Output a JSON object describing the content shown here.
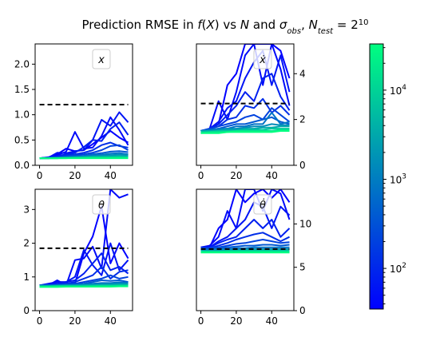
{
  "figure": {
    "title_parts": [
      {
        "t": "Prediction RMSE in ",
        "i": false
      },
      {
        "t": "f",
        "i": true
      },
      {
        "t": "(",
        "i": false
      },
      {
        "t": "X",
        "i": true
      },
      {
        "t": ") vs ",
        "i": false
      },
      {
        "t": "N",
        "i": true
      },
      {
        "t": " and ",
        "i": false
      },
      {
        "t": "σ",
        "i": true
      },
      {
        "t": "obs",
        "i": true,
        "sub": true
      },
      {
        "t": ", ",
        "i": false
      },
      {
        "t": "N",
        "i": true
      },
      {
        "t": "test",
        "i": true,
        "sub": true
      },
      {
        "t": " = 2",
        "i": false
      },
      {
        "t": "10",
        "i": false,
        "sup": true
      }
    ]
  },
  "colorbar": {
    "scale": "log",
    "range": [
      35,
      33000
    ],
    "ticks": [
      {
        "v": 100,
        "base": "10",
        "exp": "2"
      },
      {
        "v": 1000,
        "base": "10",
        "exp": "3"
      },
      {
        "v": 10000,
        "base": "10",
        "exp": "4"
      }
    ],
    "colormap": [
      "#0000ff",
      "#00ff80"
    ]
  },
  "colors": {
    "baseline": "#000000"
  },
  "chart_data": [
    {
      "type": "line",
      "panel": "top-left",
      "label": "x",
      "label_italic": true,
      "xlim": [
        -2.5,
        52.5
      ],
      "ylim": [
        0,
        2.4
      ],
      "xticks": [
        0,
        20,
        40
      ],
      "yticks": [
        0.0,
        0.5,
        1.0,
        1.5,
        2.0
      ],
      "ytick_labels": [
        "0.0",
        "0.5",
        "1.0",
        "1.5",
        "2.0"
      ],
      "yaxis_side": "left",
      "baseline": {
        "y": 1.2,
        "x": [
          0,
          50
        ]
      },
      "x": [
        0,
        5,
        10,
        15,
        20,
        25,
        30,
        35,
        40,
        45,
        50
      ],
      "series": [
        {
          "t": 0.0,
          "values": [
            0.14,
            0.16,
            0.22,
            0.33,
            0.28,
            0.3,
            0.42,
            0.55,
            0.68,
            0.55,
            0.45
          ]
        },
        {
          "t": 0.04,
          "values": [
            0.14,
            0.15,
            0.2,
            0.27,
            0.66,
            0.33,
            0.35,
            0.58,
            0.95,
            0.7,
            0.4
          ]
        },
        {
          "t": 0.08,
          "values": [
            0.14,
            0.15,
            0.25,
            0.24,
            0.28,
            0.3,
            0.5,
            0.9,
            0.78,
            1.05,
            0.85
          ]
        },
        {
          "t": 0.12,
          "values": [
            0.14,
            0.15,
            0.18,
            0.22,
            0.25,
            0.36,
            0.5,
            0.48,
            0.72,
            0.85,
            0.6
          ]
        },
        {
          "t": 0.18,
          "values": [
            0.14,
            0.15,
            0.17,
            0.2,
            0.22,
            0.25,
            0.3,
            0.4,
            0.45,
            0.38,
            0.35
          ]
        },
        {
          "t": 0.26,
          "values": [
            0.14,
            0.15,
            0.16,
            0.18,
            0.2,
            0.22,
            0.25,
            0.3,
            0.38,
            0.4,
            0.3
          ]
        },
        {
          "t": 0.35,
          "values": [
            0.14,
            0.14,
            0.15,
            0.17,
            0.18,
            0.19,
            0.22,
            0.24,
            0.27,
            0.28,
            0.26
          ]
        },
        {
          "t": 0.45,
          "values": [
            0.14,
            0.14,
            0.15,
            0.16,
            0.17,
            0.18,
            0.2,
            0.21,
            0.23,
            0.24,
            0.22
          ]
        },
        {
          "t": 0.55,
          "values": [
            0.14,
            0.14,
            0.15,
            0.15,
            0.16,
            0.17,
            0.18,
            0.19,
            0.2,
            0.21,
            0.2
          ]
        },
        {
          "t": 0.66,
          "values": [
            0.14,
            0.14,
            0.14,
            0.15,
            0.15,
            0.16,
            0.17,
            0.17,
            0.18,
            0.18,
            0.18
          ]
        },
        {
          "t": 0.78,
          "values": [
            0.14,
            0.14,
            0.14,
            0.15,
            0.15,
            0.15,
            0.16,
            0.16,
            0.16,
            0.17,
            0.16
          ]
        },
        {
          "t": 0.9,
          "values": [
            0.14,
            0.14,
            0.14,
            0.14,
            0.15,
            0.15,
            0.15,
            0.15,
            0.15,
            0.15,
            0.15
          ]
        },
        {
          "t": 1.0,
          "values": [
            0.14,
            0.14,
            0.14,
            0.14,
            0.14,
            0.14,
            0.14,
            0.14,
            0.14,
            0.14,
            0.14
          ]
        }
      ]
    },
    {
      "type": "line",
      "panel": "top-right",
      "label": "ẋ",
      "label_italic": true,
      "xlim": [
        -2.5,
        52.5
      ],
      "ylim": [
        0,
        5.3
      ],
      "xticks": [
        0,
        20,
        40
      ],
      "yticks": [
        0,
        2,
        4
      ],
      "ytick_labels": [
        "0",
        "2",
        "4"
      ],
      "yaxis_side": "right",
      "baseline": {
        "y": 2.7,
        "x": [
          0,
          50
        ]
      },
      "x": [
        0,
        5,
        10,
        15,
        20,
        25,
        30,
        35,
        40,
        45,
        50
      ],
      "series": [
        {
          "t": 0.0,
          "values": [
            1.5,
            1.6,
            1.8,
            3.5,
            4.0,
            5.3,
            5.3,
            5.3,
            5.3,
            5.0,
            3.8
          ]
        },
        {
          "t": 0.04,
          "values": [
            1.5,
            1.6,
            2.8,
            2.0,
            3.2,
            4.8,
            5.3,
            3.5,
            5.3,
            4.2,
            2.6
          ]
        },
        {
          "t": 0.08,
          "values": [
            1.5,
            1.6,
            1.9,
            2.5,
            2.8,
            3.8,
            4.5,
            5.0,
            3.5,
            4.8,
            3.2
          ]
        },
        {
          "t": 0.12,
          "values": [
            1.5,
            1.6,
            1.8,
            2.2,
            2.6,
            3.2,
            2.8,
            3.8,
            4.0,
            3.0,
            2.4
          ]
        },
        {
          "t": 0.18,
          "values": [
            1.5,
            1.6,
            1.7,
            2.0,
            2.1,
            2.6,
            2.5,
            2.9,
            2.3,
            2.6,
            2.2
          ]
        },
        {
          "t": 0.26,
          "values": [
            1.5,
            1.6,
            1.7,
            1.8,
            1.9,
            2.1,
            2.2,
            2.0,
            2.5,
            2.2,
            1.9
          ]
        },
        {
          "t": 0.35,
          "values": [
            1.5,
            1.55,
            1.6,
            1.7,
            1.8,
            1.8,
            1.9,
            2.0,
            2.1,
            1.9,
            1.8
          ]
        },
        {
          "t": 0.45,
          "values": [
            1.5,
            1.55,
            1.6,
            1.6,
            1.7,
            1.7,
            1.8,
            1.8,
            2.3,
            1.8,
            1.9
          ]
        },
        {
          "t": 0.55,
          "values": [
            1.5,
            1.5,
            1.55,
            1.6,
            1.6,
            1.65,
            1.7,
            1.7,
            1.8,
            1.75,
            1.75
          ]
        },
        {
          "t": 0.66,
          "values": [
            1.5,
            1.5,
            1.5,
            1.55,
            1.55,
            1.6,
            1.6,
            1.65,
            1.65,
            1.7,
            1.7
          ]
        },
        {
          "t": 0.78,
          "values": [
            1.45,
            1.45,
            1.5,
            1.5,
            1.5,
            1.55,
            1.55,
            1.55,
            1.6,
            1.6,
            1.6
          ]
        },
        {
          "t": 0.9,
          "values": [
            1.4,
            1.45,
            1.45,
            1.45,
            1.5,
            1.5,
            1.5,
            1.5,
            1.5,
            1.55,
            1.55
          ]
        },
        {
          "t": 1.0,
          "values": [
            1.4,
            1.4,
            1.4,
            1.45,
            1.45,
            1.45,
            1.45,
            1.45,
            1.45,
            1.5,
            1.5
          ]
        }
      ]
    },
    {
      "type": "line",
      "panel": "bottom-left",
      "label": "θ",
      "label_italic": true,
      "xlim": [
        -2.5,
        52.5
      ],
      "ylim": [
        0,
        3.6
      ],
      "xticks": [
        0,
        20,
        40
      ],
      "yticks": [
        0,
        1,
        2,
        3
      ],
      "ytick_labels": [
        "0",
        "1",
        "2",
        "3"
      ],
      "yaxis_side": "left",
      "baseline": {
        "y": 1.85,
        "x": [
          0,
          50
        ]
      },
      "x": [
        0,
        5,
        10,
        15,
        20,
        25,
        30,
        35,
        40,
        45,
        50
      ],
      "series": [
        {
          "t": 0.0,
          "values": [
            0.75,
            0.75,
            0.85,
            0.8,
            0.8,
            1.7,
            2.2,
            3.1,
            1.4,
            2.0,
            1.55
          ]
        },
        {
          "t": 0.04,
          "values": [
            0.75,
            0.75,
            0.9,
            0.75,
            1.5,
            1.55,
            1.9,
            1.25,
            3.6,
            3.35,
            3.45
          ]
        },
        {
          "t": 0.08,
          "values": [
            0.75,
            0.8,
            0.85,
            0.85,
            1.0,
            1.8,
            1.35,
            1.05,
            2.0,
            1.2,
            1.5
          ]
        },
        {
          "t": 0.12,
          "values": [
            0.75,
            0.75,
            0.8,
            0.85,
            0.9,
            1.1,
            1.4,
            1.7,
            1.2,
            1.3,
            1.1
          ]
        },
        {
          "t": 0.18,
          "values": [
            0.75,
            0.75,
            0.78,
            0.8,
            0.85,
            0.95,
            1.05,
            1.3,
            0.95,
            1.15,
            1.2
          ]
        },
        {
          "t": 0.26,
          "values": [
            0.75,
            0.75,
            0.76,
            0.78,
            0.8,
            0.85,
            0.9,
            0.95,
            1.05,
            0.95,
            1.0
          ]
        },
        {
          "t": 0.35,
          "values": [
            0.75,
            0.75,
            0.75,
            0.77,
            0.78,
            0.8,
            0.85,
            0.9,
            0.88,
            0.9,
            0.85
          ]
        },
        {
          "t": 0.45,
          "values": [
            0.74,
            0.74,
            0.75,
            0.75,
            0.76,
            0.78,
            0.8,
            0.82,
            0.82,
            0.84,
            0.82
          ]
        },
        {
          "t": 0.55,
          "values": [
            0.74,
            0.74,
            0.74,
            0.75,
            0.75,
            0.76,
            0.77,
            0.78,
            0.79,
            0.8,
            0.8
          ]
        },
        {
          "t": 0.66,
          "values": [
            0.73,
            0.73,
            0.74,
            0.74,
            0.74,
            0.75,
            0.75,
            0.76,
            0.76,
            0.77,
            0.77
          ]
        },
        {
          "t": 0.78,
          "values": [
            0.72,
            0.72,
            0.73,
            0.73,
            0.73,
            0.73,
            0.74,
            0.74,
            0.74,
            0.75,
            0.75
          ]
        },
        {
          "t": 0.9,
          "values": [
            0.71,
            0.71,
            0.72,
            0.72,
            0.72,
            0.72,
            0.72,
            0.73,
            0.73,
            0.73,
            0.73
          ]
        },
        {
          "t": 1.0,
          "values": [
            0.7,
            0.7,
            0.7,
            0.71,
            0.71,
            0.71,
            0.71,
            0.71,
            0.71,
            0.72,
            0.72
          ]
        }
      ]
    },
    {
      "type": "line",
      "panel": "bottom-right",
      "label": "θ̇",
      "label_italic": true,
      "xlim": [
        -2.5,
        52.5
      ],
      "ylim": [
        0,
        14
      ],
      "xticks": [
        0,
        20,
        40
      ],
      "yticks": [
        0,
        5,
        10
      ],
      "ytick_labels": [
        "0",
        "5",
        "10"
      ],
      "yaxis_side": "right",
      "baseline": {
        "y": 7.1,
        "x": [
          0,
          50
        ]
      },
      "x": [
        0,
        5,
        10,
        15,
        20,
        25,
        30,
        35,
        40,
        45,
        50
      ],
      "series": [
        {
          "t": 0.0,
          "values": [
            7.3,
            7.3,
            9.5,
            10.5,
            14,
            12.5,
            13.5,
            14,
            13,
            14,
            12.5
          ]
        },
        {
          "t": 0.04,
          "values": [
            7.3,
            7.5,
            8.5,
            11.5,
            9.5,
            14,
            14,
            11.5,
            14,
            13.5,
            10.5
          ]
        },
        {
          "t": 0.08,
          "values": [
            7.3,
            7.3,
            8.0,
            8.5,
            9.5,
            10.5,
            12.5,
            12,
            9.5,
            12,
            11
          ]
        },
        {
          "t": 0.12,
          "values": [
            7.3,
            7.3,
            7.8,
            8.2,
            8.5,
            9.5,
            10.5,
            9.5,
            10.5,
            8.5,
            9.5
          ]
        },
        {
          "t": 0.18,
          "values": [
            7.2,
            7.2,
            7.5,
            7.8,
            8.2,
            8.5,
            8.8,
            9.0,
            8.5,
            8.0,
            8.5
          ]
        },
        {
          "t": 0.26,
          "values": [
            7.2,
            7.2,
            7.3,
            7.5,
            7.7,
            7.8,
            8.0,
            8.2,
            8.0,
            7.8,
            7.9
          ]
        },
        {
          "t": 0.35,
          "values": [
            7.1,
            7.1,
            7.2,
            7.3,
            7.4,
            7.5,
            7.5,
            7.6,
            7.6,
            7.5,
            7.6
          ]
        },
        {
          "t": 0.45,
          "values": [
            7.0,
            7.0,
            7.1,
            7.1,
            7.2,
            7.2,
            7.3,
            7.3,
            7.3,
            7.3,
            7.3
          ]
        },
        {
          "t": 0.55,
          "values": [
            6.9,
            6.9,
            7.0,
            7.0,
            7.0,
            7.1,
            7.1,
            7.1,
            7.1,
            7.1,
            7.1
          ]
        },
        {
          "t": 0.66,
          "values": [
            6.9,
            6.9,
            6.9,
            6.9,
            6.9,
            7.0,
            7.0,
            7.0,
            7.0,
            7.0,
            7.0
          ]
        },
        {
          "t": 0.78,
          "values": [
            6.8,
            6.8,
            6.8,
            6.9,
            6.9,
            6.9,
            6.9,
            6.9,
            6.9,
            6.9,
            6.9
          ]
        },
        {
          "t": 0.9,
          "values": [
            6.8,
            6.8,
            6.8,
            6.8,
            6.8,
            6.8,
            6.8,
            6.8,
            6.8,
            6.8,
            6.8
          ]
        },
        {
          "t": 1.0,
          "values": [
            6.7,
            6.7,
            6.7,
            6.7,
            6.7,
            6.7,
            6.7,
            6.7,
            6.7,
            6.7,
            6.7
          ]
        }
      ]
    }
  ]
}
